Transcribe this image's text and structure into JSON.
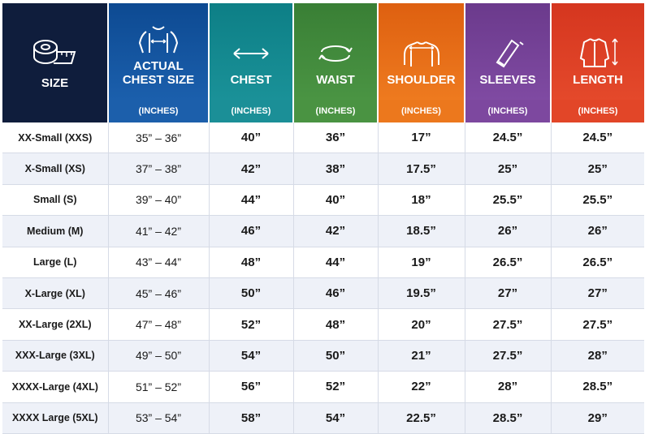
{
  "headers": [
    {
      "label": "SIZE",
      "sub": "",
      "icon": "tape-measure-icon",
      "color": "#0f1d3c"
    },
    {
      "label": "ACTUAL CHEST SIZE",
      "line1": "ACTUAL",
      "line2": "CHEST SIZE",
      "sub": "(INCHES)",
      "icon": "torso-chest-icon",
      "color": "#1c5fab"
    },
    {
      "label": "CHEST",
      "sub": "(INCHES)",
      "icon": "double-arrow-icon",
      "color": "#1b8f97"
    },
    {
      "label": "WAIST",
      "sub": "(INCHES)",
      "icon": "circular-arrows-icon",
      "color": "#4a9342"
    },
    {
      "label": "SHOULDER",
      "sub": "(INCHES)",
      "icon": "shoulder-icon",
      "color": "#ec781d"
    },
    {
      "label": "SLEEVES",
      "sub": "(INCHES)",
      "icon": "sleeve-icon",
      "color": "#7d489f"
    },
    {
      "label": "LENGTH",
      "sub": "(INCHES)",
      "icon": "jacket-length-icon",
      "color": "#e24628"
    }
  ],
  "rows": [
    {
      "size": "XX-Small (XXS)",
      "actual_chest": "35” – 36”",
      "chest": "40”",
      "waist": "36”",
      "shoulder": "17”",
      "sleeves": "24.5”",
      "length": "24.5”"
    },
    {
      "size": "X-Small (XS)",
      "actual_chest": "37” – 38”",
      "chest": "42”",
      "waist": "38”",
      "shoulder": "17.5”",
      "sleeves": "25”",
      "length": "25”"
    },
    {
      "size": "Small (S)",
      "actual_chest": "39” – 40”",
      "chest": "44”",
      "waist": "40”",
      "shoulder": "18”",
      "sleeves": "25.5”",
      "length": "25.5”"
    },
    {
      "size": "Medium (M)",
      "actual_chest": "41” – 42”",
      "chest": "46”",
      "waist": "42”",
      "shoulder": "18.5”",
      "sleeves": "26”",
      "length": "26”"
    },
    {
      "size": "Large (L)",
      "actual_chest": "43” – 44”",
      "chest": "48”",
      "waist": "44”",
      "shoulder": "19”",
      "sleeves": "26.5”",
      "length": "26.5”"
    },
    {
      "size": "X-Large (XL)",
      "actual_chest": "45” – 46”",
      "chest": "50”",
      "waist": "46”",
      "shoulder": "19.5”",
      "sleeves": "27”",
      "length": "27”"
    },
    {
      "size": "XX-Large (2XL)",
      "actual_chest": "47” – 48”",
      "chest": "52”",
      "waist": "48”",
      "shoulder": "20”",
      "sleeves": "27.5”",
      "length": "27.5”"
    },
    {
      "size": "XXX-Large (3XL)",
      "actual_chest": "49” – 50”",
      "chest": "54”",
      "waist": "50”",
      "shoulder": "21”",
      "sleeves": "27.5”",
      "length": "28”"
    },
    {
      "size": "XXXX-Large (4XL)",
      "actual_chest": "51” – 52”",
      "chest": "56”",
      "waist": "52”",
      "shoulder": "22”",
      "sleeves": "28”",
      "length": "28.5”"
    },
    {
      "size": "XXXX Large (5XL)",
      "actual_chest": "53” – 54”",
      "chest": "58”",
      "waist": "54”",
      "shoulder": "22.5”",
      "sleeves": "28.5”",
      "length": "29”"
    }
  ]
}
